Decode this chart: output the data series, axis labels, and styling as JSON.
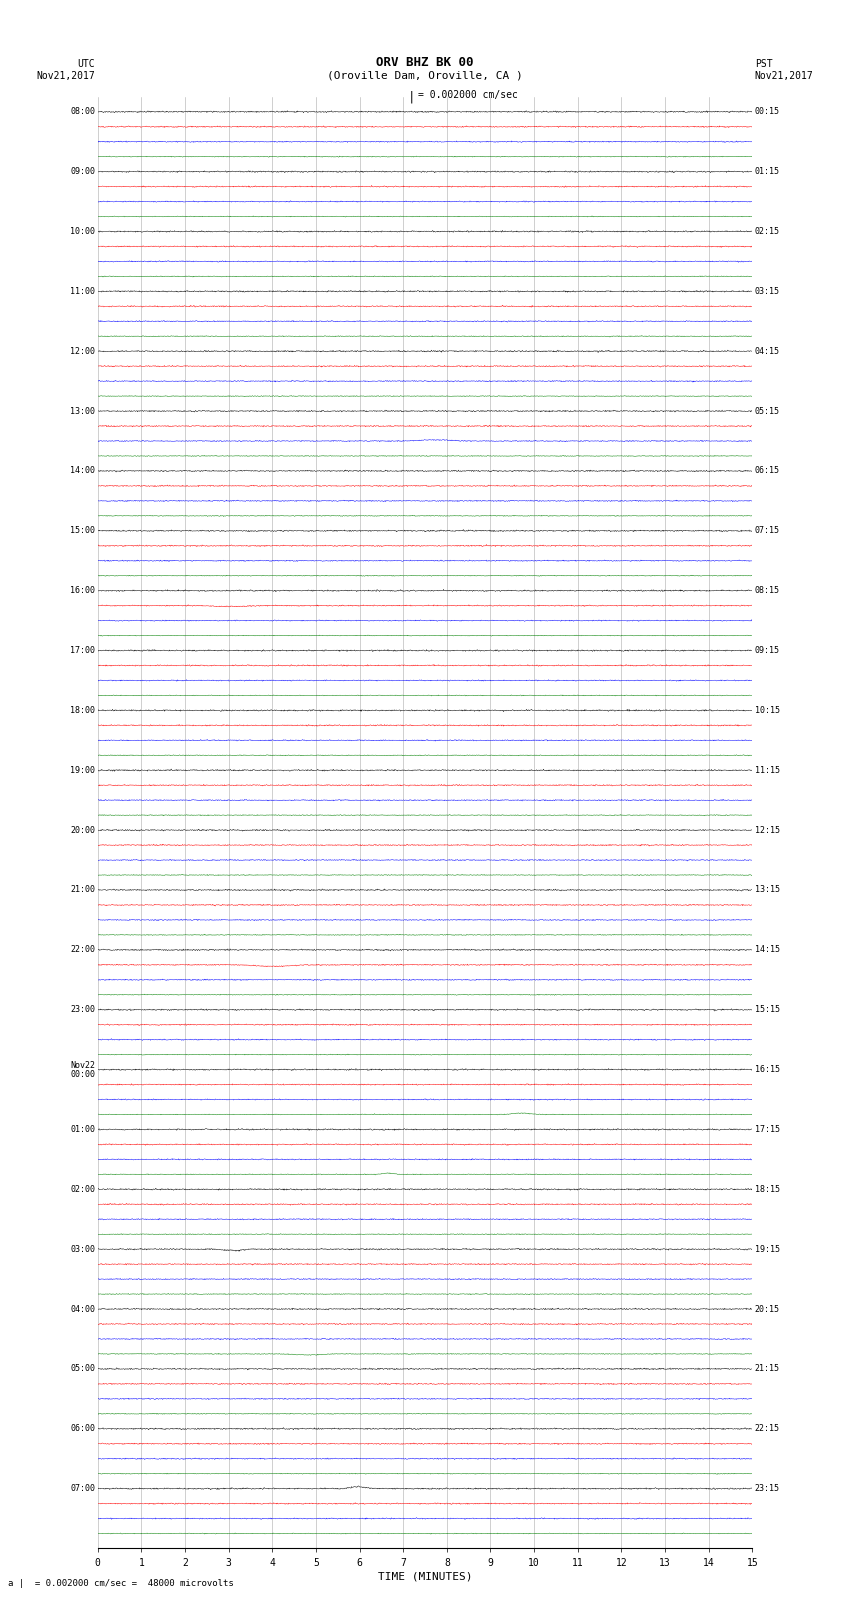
{
  "title_line1": "ORV BHZ BK 00",
  "title_line2": "(Oroville Dam, Oroville, CA )",
  "scale_label": "= 0.002000 cm/sec",
  "bottom_label": "a |  = 0.002000 cm/sec =  48000 microvolts",
  "left_header1": "UTC",
  "left_header2": "Nov21,2017",
  "right_header1": "PST",
  "right_header2": "Nov21,2017",
  "xlabel": "TIME (MINUTES)",
  "minutes_per_row": 15,
  "n_hour_groups": 24,
  "traces_per_group": 4,
  "colors": [
    "black",
    "red",
    "blue",
    "green"
  ],
  "noise_scales": [
    0.032,
    0.028,
    0.025,
    0.018
  ],
  "fig_width": 8.5,
  "fig_height": 16.13,
  "samples_per_minute": 100,
  "seed": 42,
  "left_times": [
    "08:00",
    "",
    "",
    "",
    "09:00",
    "",
    "",
    "",
    "10:00",
    "",
    "",
    "",
    "11:00",
    "",
    "",
    "",
    "12:00",
    "",
    "",
    "",
    "13:00",
    "",
    "",
    "",
    "14:00",
    "",
    "",
    "",
    "15:00",
    "",
    "",
    "",
    "16:00",
    "",
    "",
    "",
    "17:00",
    "",
    "",
    "",
    "18:00",
    "",
    "",
    "",
    "19:00",
    "",
    "",
    "",
    "20:00",
    "",
    "",
    "",
    "21:00",
    "",
    "",
    "",
    "22:00",
    "",
    "",
    "",
    "23:00",
    "",
    "",
    "",
    "Nov22\n00:00",
    "",
    "",
    "",
    "01:00",
    "",
    "",
    "",
    "02:00",
    "",
    "",
    "",
    "03:00",
    "",
    "",
    "",
    "04:00",
    "",
    "",
    "",
    "05:00",
    "",
    "",
    "",
    "06:00",
    "",
    "",
    "",
    "07:00",
    "",
    "",
    ""
  ],
  "right_times": [
    "00:15",
    "",
    "",
    "",
    "01:15",
    "",
    "",
    "",
    "02:15",
    "",
    "",
    "",
    "03:15",
    "",
    "",
    "",
    "04:15",
    "",
    "",
    "",
    "05:15",
    "",
    "",
    "",
    "06:15",
    "",
    "",
    "",
    "07:15",
    "",
    "",
    "",
    "08:15",
    "",
    "",
    "",
    "09:15",
    "",
    "",
    "",
    "10:15",
    "",
    "",
    "",
    "11:15",
    "",
    "",
    "",
    "12:15",
    "",
    "",
    "",
    "13:15",
    "",
    "",
    "",
    "14:15",
    "",
    "",
    "",
    "15:15",
    "",
    "",
    "",
    "16:15",
    "",
    "",
    "",
    "17:15",
    "",
    "",
    "",
    "18:15",
    "",
    "",
    "",
    "19:15",
    "",
    "",
    "",
    "20:15",
    "",
    "",
    "",
    "21:15",
    "",
    "",
    "",
    "22:15",
    "",
    "",
    "",
    "23:15",
    "",
    "",
    ""
  ]
}
